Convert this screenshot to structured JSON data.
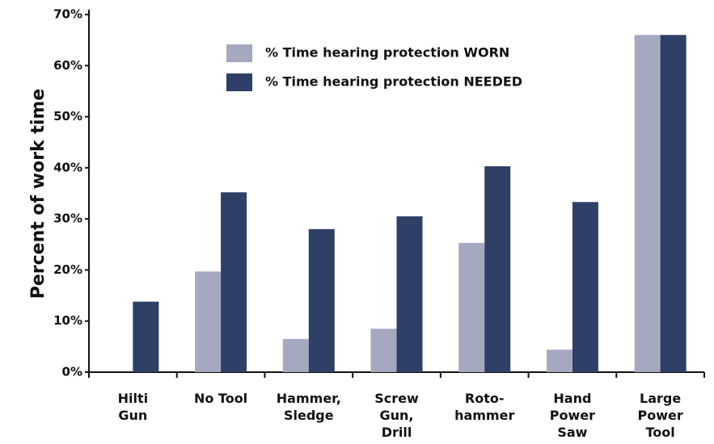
{
  "chart_data": {
    "type": "bar",
    "y_label": "Percent of work time",
    "categories": [
      "Hilti\nGun",
      "No Tool",
      "Hammer,\nSledge",
      "Screw\nGun,\nDrill",
      "Roto-\nhammer",
      "Hand\nPower\nSaw",
      "Large\nPower\nTool"
    ],
    "series": [
      {
        "name": "% Time hearing protection WORN",
        "color": "#a5a9c0",
        "values": [
          0,
          19.7,
          6.5,
          8.5,
          25.3,
          4.4,
          66
        ]
      },
      {
        "name": "% Time hearing protection NEEDED",
        "color": "#2e4068",
        "values": [
          13.8,
          35.2,
          28,
          30.5,
          40.3,
          33.3,
          66
        ]
      }
    ],
    "ylim": [
      0,
      70
    ],
    "yticks": [
      {
        "value": 0,
        "label": "0%"
      },
      {
        "value": 10,
        "label": "10%"
      },
      {
        "value": 20,
        "label": "20%"
      },
      {
        "value": 30,
        "label": "30%"
      },
      {
        "value": 40,
        "label": "40%"
      },
      {
        "value": 50,
        "label": "50%"
      },
      {
        "value": 60,
        "label": "60%"
      },
      {
        "value": 70,
        "label": "70%"
      }
    ],
    "grid": false,
    "legend": "top"
  }
}
